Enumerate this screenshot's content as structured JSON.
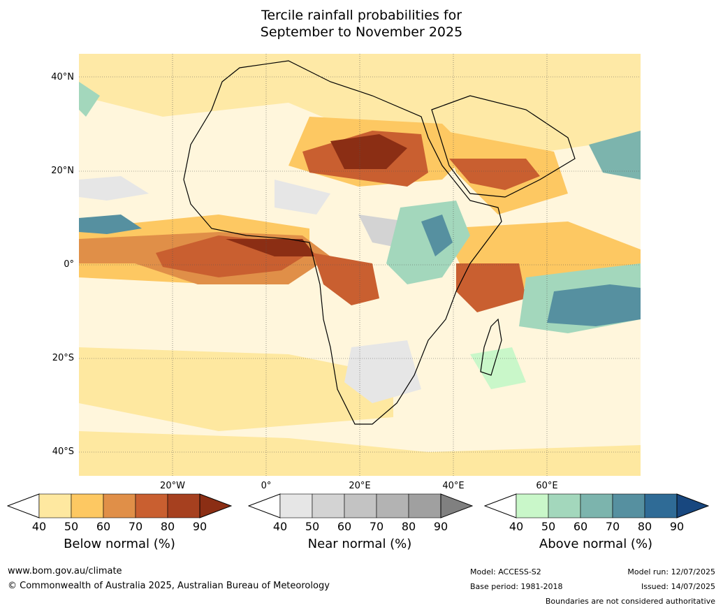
{
  "title": {
    "line1": "Tercile rainfall probabilities for",
    "line2": "September to November 2025"
  },
  "map": {
    "region": "Africa, Arabian Peninsula and surrounding oceans",
    "lat_labels": [
      "40°N",
      "20°N",
      "0°",
      "20°S",
      "40°S"
    ],
    "lon_labels": [
      "20°W",
      "0°",
      "20°E",
      "40°E",
      "60°E"
    ]
  },
  "colorbars": [
    {
      "name": "below",
      "label": "Below normal (%)",
      "ticks": [
        "40",
        "50",
        "60",
        "70",
        "80",
        "90"
      ],
      "colors": [
        "#ffffff",
        "#fee8a0",
        "#fdc862",
        "#e08f48",
        "#c95f30",
        "#a6401f",
        "#8b2e14"
      ]
    },
    {
      "name": "near",
      "label": "Near normal (%)",
      "ticks": [
        "40",
        "50",
        "60",
        "70",
        "80",
        "90"
      ],
      "colors": [
        "#ffffff",
        "#e6e6e6",
        "#d3d3d3",
        "#c3c3c3",
        "#b3b3b3",
        "#a0a0a0",
        "#808080"
      ]
    },
    {
      "name": "above",
      "label": "Above normal (%)",
      "ticks": [
        "40",
        "50",
        "60",
        "70",
        "80",
        "90"
      ],
      "colors": [
        "#ffffff",
        "#c9f7c9",
        "#a3d7bc",
        "#7cb4ad",
        "#5690a0",
        "#2f6b96",
        "#18477f"
      ]
    }
  ],
  "footer": {
    "website": "www.bom.gov.au/climate",
    "copyright": "© Commonwealth of Australia 2025, Australian Bureau of Meteorology",
    "model": "Model: ACCESS-S2",
    "base_period": "Base period: 1981-2018",
    "model_run": "Model run: 12/07/2025",
    "issued": "Issued: 14/07/2025",
    "disclaimer": "Boundaries are not considered authoritative"
  }
}
